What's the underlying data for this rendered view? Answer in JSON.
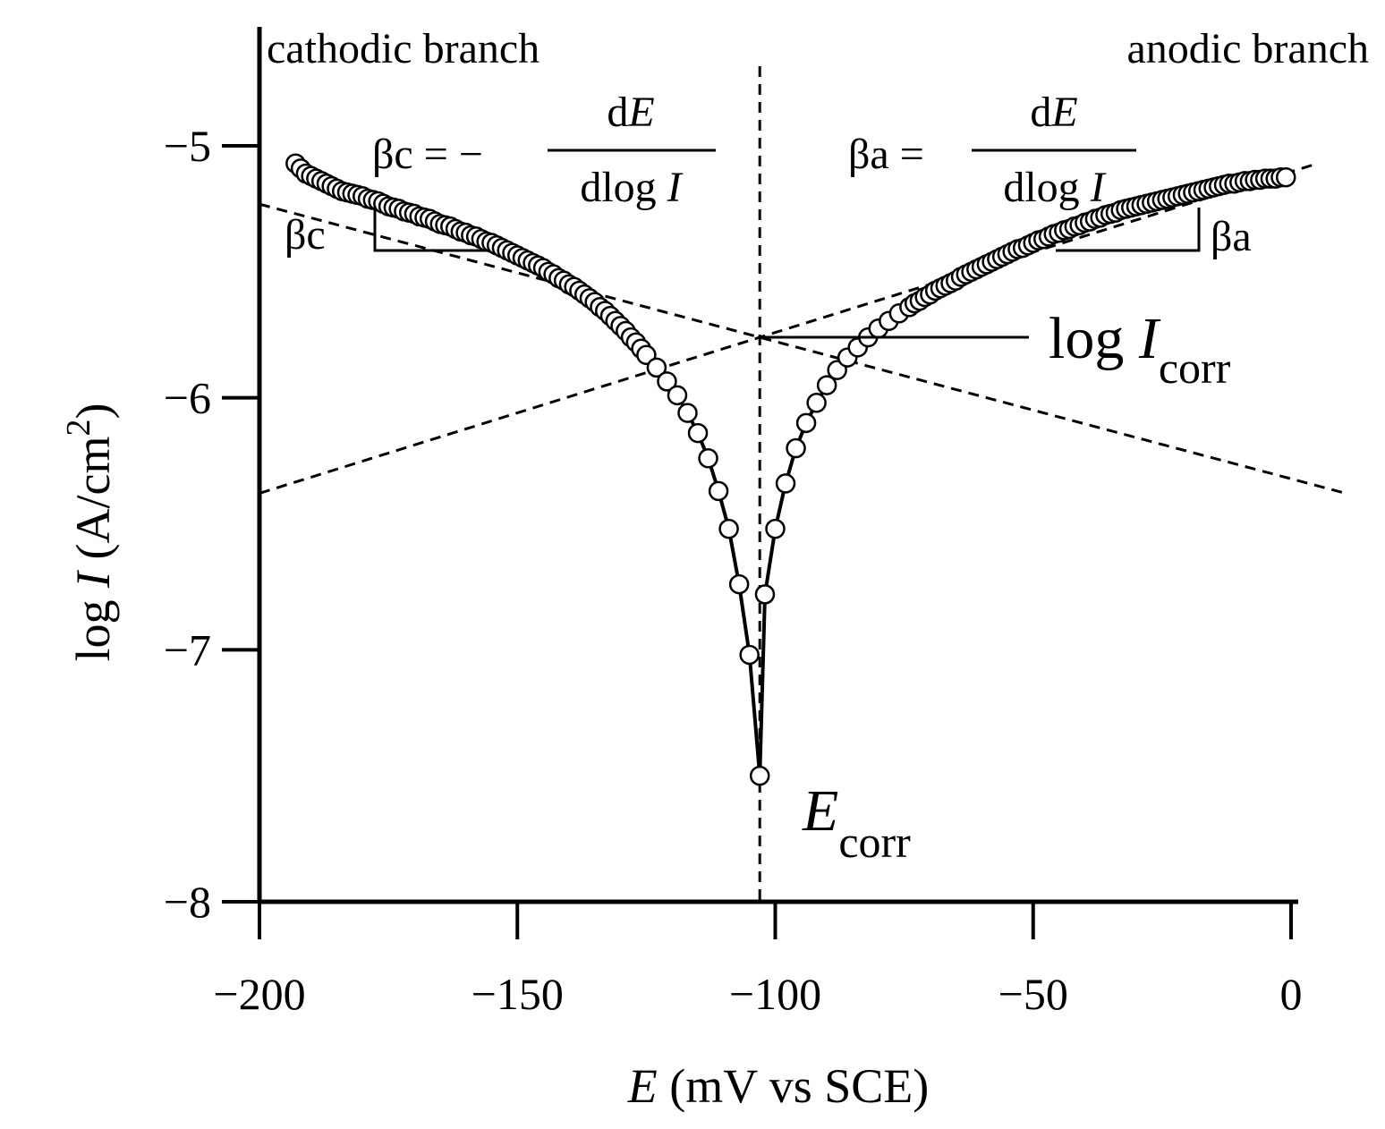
{
  "chart_data": {
    "type": "scatter",
    "title": "",
    "xlabel": {
      "var": "E",
      "rest": " (mV vs SCE)"
    },
    "ylabel": {
      "prefix": "log ",
      "var": "I",
      "rest": " (A/cm",
      "sup": "2",
      "close": ")"
    },
    "xlim": [
      -200,
      0
    ],
    "ylim": [
      -8,
      -4.45
    ],
    "x_ticks": [
      {
        "value": -200,
        "label": "−200"
      },
      {
        "value": -150,
        "label": "−150"
      },
      {
        "value": -100,
        "label": "−100"
      },
      {
        "value": -50,
        "label": "−50"
      },
      {
        "value": 0,
        "label": "0"
      }
    ],
    "y_ticks": [
      {
        "value": -5,
        "label": "−5"
      },
      {
        "value": -6,
        "label": "−6"
      },
      {
        "value": -7,
        "label": "−7"
      },
      {
        "value": -8,
        "label": "−8"
      }
    ],
    "grid": false,
    "Ecorr": -103,
    "logIcorr": -5.76,
    "betac_slope": -0.00545,
    "betaa_slope": 0.00638,
    "cathodic_points": [
      [
        -193,
        -5.07
      ],
      [
        -192,
        -5.09
      ],
      [
        -191,
        -5.11
      ],
      [
        -190,
        -5.12
      ],
      [
        -189,
        -5.13
      ],
      [
        -188,
        -5.14
      ],
      [
        -187,
        -5.15
      ],
      [
        -186,
        -5.16
      ],
      [
        -185,
        -5.17
      ],
      [
        -184,
        -5.18
      ],
      [
        -183,
        -5.185
      ],
      [
        -182,
        -5.19
      ],
      [
        -181,
        -5.195
      ],
      [
        -180,
        -5.2
      ],
      [
        -179,
        -5.21
      ],
      [
        -178,
        -5.215
      ],
      [
        -177,
        -5.22
      ],
      [
        -176,
        -5.23
      ],
      [
        -175,
        -5.24
      ],
      [
        -174,
        -5.245
      ],
      [
        -173,
        -5.25
      ],
      [
        -172,
        -5.26
      ],
      [
        -171,
        -5.265
      ],
      [
        -170,
        -5.27
      ],
      [
        -169,
        -5.28
      ],
      [
        -168,
        -5.285
      ],
      [
        -167,
        -5.29
      ],
      [
        -166,
        -5.3
      ],
      [
        -165,
        -5.31
      ],
      [
        -164,
        -5.315
      ],
      [
        -163,
        -5.32
      ],
      [
        -162,
        -5.33
      ],
      [
        -161,
        -5.34
      ],
      [
        -160,
        -5.345
      ],
      [
        -159,
        -5.355
      ],
      [
        -158,
        -5.36
      ],
      [
        -157,
        -5.37
      ],
      [
        -156,
        -5.38
      ],
      [
        -155,
        -5.385
      ],
      [
        -154,
        -5.395
      ],
      [
        -153,
        -5.405
      ],
      [
        -152,
        -5.415
      ],
      [
        -151,
        -5.425
      ],
      [
        -150,
        -5.435
      ],
      [
        -149,
        -5.445
      ],
      [
        -148,
        -5.455
      ],
      [
        -147,
        -5.465
      ],
      [
        -146,
        -5.475
      ],
      [
        -145,
        -5.485
      ],
      [
        -144,
        -5.5
      ],
      [
        -143,
        -5.51
      ],
      [
        -142,
        -5.525
      ],
      [
        -141,
        -5.535
      ],
      [
        -140,
        -5.55
      ],
      [
        -139,
        -5.56
      ],
      [
        -138,
        -5.575
      ],
      [
        -137,
        -5.59
      ],
      [
        -136,
        -5.605
      ],
      [
        -135,
        -5.62
      ],
      [
        -134,
        -5.64
      ],
      [
        -133,
        -5.655
      ],
      [
        -132,
        -5.675
      ],
      [
        -131,
        -5.695
      ],
      [
        -130,
        -5.715
      ],
      [
        -129,
        -5.735
      ],
      [
        -128,
        -5.76
      ],
      [
        -127,
        -5.78
      ],
      [
        -126,
        -5.805
      ],
      [
        -125,
        -5.83
      ],
      [
        -123,
        -5.88
      ],
      [
        -121,
        -5.935
      ],
      [
        -119,
        -5.99
      ],
      [
        -117,
        -6.06
      ],
      [
        -115,
        -6.14
      ],
      [
        -113,
        -6.24
      ],
      [
        -111,
        -6.37
      ],
      [
        -109,
        -6.52
      ],
      [
        -107,
        -6.74
      ],
      [
        -105,
        -7.02
      ],
      [
        -103,
        -7.5
      ]
    ],
    "anodic_points": [
      [
        -102,
        -6.78
      ],
      [
        -100,
        -6.52
      ],
      [
        -98,
        -6.34
      ],
      [
        -96,
        -6.2
      ],
      [
        -94,
        -6.1
      ],
      [
        -92,
        -6.02
      ],
      [
        -90,
        -5.95
      ],
      [
        -88,
        -5.89
      ],
      [
        -86,
        -5.84
      ],
      [
        -84,
        -5.8
      ],
      [
        -82,
        -5.76
      ],
      [
        -80,
        -5.725
      ],
      [
        -78,
        -5.695
      ],
      [
        -76,
        -5.665
      ],
      [
        -74,
        -5.64
      ],
      [
        -73,
        -5.625
      ],
      [
        -72,
        -5.615
      ],
      [
        -71,
        -5.6
      ],
      [
        -70,
        -5.59
      ],
      [
        -69,
        -5.575
      ],
      [
        -68,
        -5.565
      ],
      [
        -67,
        -5.555
      ],
      [
        -66,
        -5.545
      ],
      [
        -65,
        -5.535
      ],
      [
        -64,
        -5.52
      ],
      [
        -63,
        -5.51
      ],
      [
        -62,
        -5.5
      ],
      [
        -61,
        -5.49
      ],
      [
        -60,
        -5.48
      ],
      [
        -59,
        -5.47
      ],
      [
        -58,
        -5.46
      ],
      [
        -57,
        -5.45
      ],
      [
        -56,
        -5.44
      ],
      [
        -55,
        -5.43
      ],
      [
        -54,
        -5.42
      ],
      [
        -53,
        -5.41
      ],
      [
        -52,
        -5.405
      ],
      [
        -51,
        -5.395
      ],
      [
        -50,
        -5.385
      ],
      [
        -49,
        -5.375
      ],
      [
        -48,
        -5.37
      ],
      [
        -47,
        -5.36
      ],
      [
        -46,
        -5.35
      ],
      [
        -45,
        -5.345
      ],
      [
        -44,
        -5.335
      ],
      [
        -43,
        -5.33
      ],
      [
        -42,
        -5.32
      ],
      [
        -41,
        -5.315
      ],
      [
        -40,
        -5.305
      ],
      [
        -39,
        -5.3
      ],
      [
        -38,
        -5.29
      ],
      [
        -37,
        -5.285
      ],
      [
        -36,
        -5.275
      ],
      [
        -35,
        -5.27
      ],
      [
        -34,
        -5.265
      ],
      [
        -33,
        -5.255
      ],
      [
        -32,
        -5.25
      ],
      [
        -31,
        -5.245
      ],
      [
        -30,
        -5.24
      ],
      [
        -29,
        -5.235
      ],
      [
        -28,
        -5.23
      ],
      [
        -27,
        -5.225
      ],
      [
        -26,
        -5.22
      ],
      [
        -25,
        -5.215
      ],
      [
        -24,
        -5.21
      ],
      [
        -23,
        -5.205
      ],
      [
        -22,
        -5.2
      ],
      [
        -21,
        -5.195
      ],
      [
        -20,
        -5.19
      ],
      [
        -19,
        -5.185
      ],
      [
        -18,
        -5.18
      ],
      [
        -17,
        -5.175
      ],
      [
        -16,
        -5.17
      ],
      [
        -15,
        -5.165
      ],
      [
        -14,
        -5.16
      ],
      [
        -13,
        -5.155
      ],
      [
        -12,
        -5.15
      ],
      [
        -11,
        -5.15
      ],
      [
        -10,
        -5.145
      ],
      [
        -9,
        -5.14
      ],
      [
        -8,
        -5.14
      ],
      [
        -7,
        -5.135
      ],
      [
        -6,
        -5.135
      ],
      [
        -5,
        -5.13
      ],
      [
        -4,
        -5.13
      ],
      [
        -3,
        -5.13
      ],
      [
        -2,
        -5.125
      ],
      [
        -1,
        -5.125
      ]
    ],
    "annotations": {
      "cathodic_branch": "cathodic branch",
      "anodic_branch": "anodic branch",
      "betac_formula": {
        "lhs": "βc = −",
        "num_d": "d",
        "num_var": "E",
        "den_text": "dlog ",
        "den_var": "I"
      },
      "betaa_formula": {
        "lhs": "βa = ",
        "num_d": "d",
        "num_var": "E",
        "den_text": "dlog ",
        "den_var": "I"
      },
      "betac_label": "βc",
      "betaa_label": "βa",
      "log_icorr": {
        "prefix": "log ",
        "var": "I",
        "sub": "corr"
      },
      "ecorr": {
        "var": "E",
        "sub": "corr"
      }
    }
  }
}
